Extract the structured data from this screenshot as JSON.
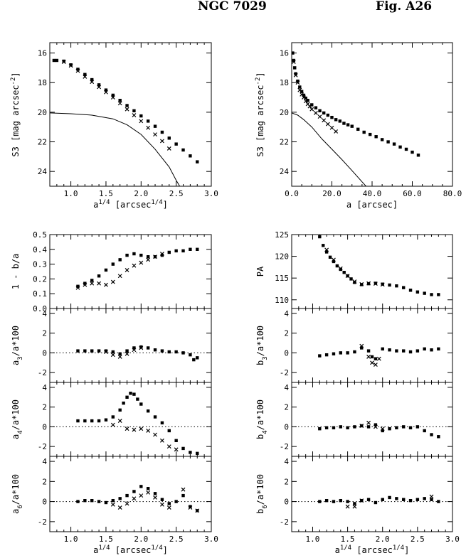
{
  "header": {
    "galaxy": "NGC 7029",
    "figure": "Fig. A26"
  },
  "chart_data": [
    {
      "id": "sb_vs_a14",
      "type": "scatter",
      "xlabel": "a^{1/4} [arcsec^{1/4}]",
      "ylabel": "S3 [mag arcsec^{-2}]",
      "xlim": [
        0.7,
        3.0
      ],
      "ylim": [
        25.0,
        15.3
      ],
      "y_inverted": true,
      "xticks": [
        "1.0",
        "1.5",
        "2.0",
        "2.5",
        "3.0"
      ],
      "yticks": [
        "16",
        "18",
        "20",
        "22",
        "24"
      ],
      "series": [
        {
          "marker": "square",
          "x": [
            0.76,
            0.8,
            0.9,
            1.0,
            1.1,
            1.2,
            1.3,
            1.4,
            1.5,
            1.6,
            1.7,
            1.8,
            1.9,
            2.0,
            2.1,
            2.2,
            2.3,
            2.4,
            2.5,
            2.6,
            2.7,
            2.8
          ],
          "y": [
            16.5,
            16.5,
            16.55,
            16.8,
            17.1,
            17.45,
            17.8,
            18.15,
            18.5,
            18.85,
            19.2,
            19.55,
            19.9,
            20.25,
            20.6,
            20.95,
            21.35,
            21.75,
            22.15,
            22.55,
            22.95,
            23.35
          ]
        },
        {
          "marker": "cross",
          "x": [
            0.9,
            1.0,
            1.1,
            1.2,
            1.3,
            1.4,
            1.5,
            1.6,
            1.7,
            1.8,
            1.9,
            2.0,
            2.1,
            2.2,
            2.3,
            2.4
          ],
          "y": [
            16.6,
            16.85,
            17.2,
            17.6,
            17.95,
            18.3,
            18.65,
            19.0,
            19.4,
            19.8,
            20.2,
            20.6,
            21.05,
            21.5,
            21.95,
            22.45
          ]
        },
        {
          "marker": "line",
          "x": [
            0.7,
            1.0,
            1.3,
            1.6,
            1.8,
            2.0,
            2.2,
            2.4,
            2.5,
            2.55
          ],
          "y": [
            20.05,
            20.1,
            20.2,
            20.45,
            20.85,
            21.5,
            22.5,
            23.7,
            24.6,
            25.0
          ]
        }
      ]
    },
    {
      "id": "sb_vs_a",
      "type": "scatter",
      "xlabel": "a [arcsec]",
      "ylabel": "S3 [mag arcsec^{-2}]",
      "xlim": [
        0,
        80
      ],
      "ylim": [
        25.0,
        15.3
      ],
      "y_inverted": true,
      "xticks": [
        "0.0",
        "20.0",
        "40.0",
        "60.0",
        "80.0"
      ],
      "yticks": [
        "16",
        "18",
        "20",
        "22",
        "24"
      ],
      "series": [
        {
          "marker": "square",
          "x": [
            0.5,
            1,
            1.5,
            2,
            3,
            4,
            5,
            6,
            7,
            8,
            10,
            12,
            14,
            16,
            18,
            20,
            22,
            24,
            26,
            28,
            30,
            33,
            36,
            39,
            42,
            45,
            48,
            51,
            54,
            57,
            60,
            63
          ],
          "y": [
            16.0,
            16.5,
            17.0,
            17.4,
            17.9,
            18.3,
            18.6,
            18.85,
            19.05,
            19.2,
            19.5,
            19.7,
            19.9,
            20.05,
            20.2,
            20.35,
            20.5,
            20.6,
            20.75,
            20.85,
            20.95,
            21.15,
            21.35,
            21.5,
            21.65,
            21.85,
            22.0,
            22.15,
            22.35,
            22.5,
            22.7,
            22.9
          ]
        },
        {
          "marker": "cross",
          "x": [
            1,
            2,
            3,
            4,
            5,
            6,
            7,
            8,
            9,
            10,
            12,
            14,
            16,
            18,
            20,
            22
          ],
          "y": [
            16.6,
            17.5,
            18.0,
            18.5,
            18.8,
            19.0,
            19.25,
            19.45,
            19.6,
            19.8,
            20.05,
            20.3,
            20.55,
            20.8,
            21.05,
            21.3
          ]
        },
        {
          "marker": "line",
          "x": [
            0,
            3,
            6,
            10,
            15,
            20,
            25,
            30,
            35,
            37
          ],
          "y": [
            20.05,
            20.2,
            20.5,
            21.0,
            21.8,
            22.5,
            23.2,
            23.95,
            24.7,
            25.0
          ]
        }
      ]
    },
    {
      "id": "ellipticity",
      "type": "scatter",
      "ylabel": "1 - b/a",
      "xlim": [
        0.7,
        3.0
      ],
      "ylim": [
        0.0,
        0.5
      ],
      "yticks": [
        "0.0",
        "0.1",
        "0.2",
        "0.3",
        "0.4",
        "0.5"
      ],
      "series": [
        {
          "marker": "square",
          "x": [
            1.1,
            1.2,
            1.3,
            1.4,
            1.5,
            1.6,
            1.7,
            1.8,
            1.9,
            2.0,
            2.1,
            2.2,
            2.3,
            2.4,
            2.5,
            2.6,
            2.7,
            2.8
          ],
          "y": [
            0.15,
            0.17,
            0.19,
            0.22,
            0.26,
            0.3,
            0.33,
            0.36,
            0.37,
            0.36,
            0.35,
            0.35,
            0.36,
            0.38,
            0.39,
            0.39,
            0.4,
            0.4
          ]
        },
        {
          "marker": "cross",
          "x": [
            1.1,
            1.2,
            1.3,
            1.4,
            1.5,
            1.6,
            1.7,
            1.8,
            1.9,
            2.0,
            2.1,
            2.2,
            2.3
          ],
          "y": [
            0.14,
            0.16,
            0.17,
            0.17,
            0.16,
            0.18,
            0.22,
            0.26,
            0.29,
            0.31,
            0.33,
            0.35,
            0.37
          ]
        }
      ]
    },
    {
      "id": "position_angle",
      "type": "scatter",
      "ylabel": "PA",
      "xlim": [
        0.7,
        3.0
      ],
      "ylim": [
        108,
        125
      ],
      "yticks": [
        "110",
        "115",
        "120",
        "125"
      ],
      "series": [
        {
          "marker": "square",
          "x": [
            1.1,
            1.15,
            1.2,
            1.25,
            1.3,
            1.35,
            1.4,
            1.45,
            1.5,
            1.55,
            1.6,
            1.7,
            1.8,
            1.9,
            2.0,
            2.1,
            2.2,
            2.3,
            2.4,
            2.5,
            2.6,
            2.7,
            2.8
          ],
          "y": [
            124.5,
            122.5,
            121.0,
            119.8,
            118.8,
            117.8,
            117.0,
            116.3,
            115.5,
            114.8,
            114.0,
            113.5,
            113.7,
            113.8,
            113.6,
            113.4,
            113.2,
            112.8,
            112.2,
            111.8,
            111.5,
            111.2,
            111.2
          ]
        },
        {
          "marker": "cross",
          "x": [
            1.2,
            1.3,
            1.4,
            1.5,
            1.6,
            1.7,
            1.8,
            1.9,
            2.0
          ],
          "y": [
            121.5,
            119.2,
            117.2,
            115.5,
            114.2,
            113.6,
            113.8,
            113.7,
            113.5
          ]
        }
      ]
    },
    {
      "id": "a3",
      "type": "scatter",
      "ylabel": "a_3/a*100",
      "xlim": [
        0.7,
        3.0
      ],
      "ylim": [
        -3.0,
        4.5
      ],
      "yticks": [
        "-2",
        "0",
        "2",
        "4"
      ],
      "dotted_zero": true,
      "series": [
        {
          "marker": "square",
          "x": [
            1.1,
            1.2,
            1.3,
            1.4,
            1.5,
            1.6,
            1.7,
            1.8,
            1.9,
            2.0,
            2.1,
            2.2,
            2.3,
            2.4,
            2.5,
            2.6,
            2.7,
            2.75,
            2.8
          ],
          "y": [
            0.2,
            0.2,
            0.2,
            0.2,
            0.2,
            0.1,
            -0.1,
            0.2,
            0.5,
            0.6,
            0.5,
            0.3,
            0.2,
            0.1,
            0.1,
            0.0,
            -0.2,
            -0.7,
            -0.5
          ]
        },
        {
          "marker": "cross",
          "x": [
            1.5,
            1.6,
            1.7,
            1.8,
            1.9,
            2.0
          ],
          "y": [
            0.1,
            -0.2,
            -0.4,
            -0.1,
            0.3,
            0.5
          ]
        }
      ]
    },
    {
      "id": "b3",
      "type": "scatter",
      "ylabel": "b_3/a*100",
      "xlim": [
        0.7,
        3.0
      ],
      "ylim": [
        -3.0,
        4.5
      ],
      "yticks": [
        "-2",
        "0",
        "2",
        "4"
      ],
      "series": [
        {
          "marker": "square",
          "x": [
            1.1,
            1.2,
            1.3,
            1.4,
            1.5,
            1.6,
            1.7,
            1.8,
            1.85,
            1.9,
            2.0,
            2.1,
            2.2,
            2.3,
            2.4,
            2.5,
            2.6,
            2.7,
            2.8
          ],
          "y": [
            -0.3,
            -0.2,
            -0.1,
            0.0,
            0.0,
            0.1,
            0.5,
            0.2,
            -0.4,
            -0.6,
            0.4,
            0.3,
            0.2,
            0.2,
            0.1,
            0.2,
            0.4,
            0.3,
            0.4
          ]
        },
        {
          "marker": "cross",
          "x": [
            1.7,
            1.8,
            1.85,
            1.9,
            1.95
          ],
          "y": [
            0.7,
            -0.4,
            -1.0,
            -1.2,
            -0.6
          ]
        }
      ]
    },
    {
      "id": "a4",
      "type": "scatter",
      "ylabel": "a_4/a*100",
      "xlim": [
        0.7,
        3.0
      ],
      "ylim": [
        -3.0,
        4.5
      ],
      "yticks": [
        "-2",
        "0",
        "2",
        "4"
      ],
      "dotted_zero": true,
      "series": [
        {
          "marker": "square",
          "x": [
            1.1,
            1.2,
            1.3,
            1.4,
            1.5,
            1.6,
            1.7,
            1.75,
            1.8,
            1.85,
            1.9,
            1.95,
            2.0,
            2.1,
            2.2,
            2.3,
            2.4,
            2.5,
            2.6,
            2.7,
            2.8
          ],
          "y": [
            0.6,
            0.6,
            0.6,
            0.6,
            0.7,
            1.0,
            1.7,
            2.4,
            3.0,
            3.4,
            3.3,
            2.8,
            2.3,
            1.6,
            1.0,
            0.4,
            -0.4,
            -1.4,
            -2.2,
            -2.6,
            -2.7
          ]
        },
        {
          "marker": "cross",
          "x": [
            1.6,
            1.7,
            1.8,
            1.9,
            2.0,
            2.1,
            2.2,
            2.3,
            2.4,
            2.5
          ],
          "y": [
            0.2,
            0.6,
            -0.2,
            -0.3,
            -0.2,
            -0.4,
            -0.8,
            -1.4,
            -2.0,
            -2.3
          ]
        }
      ]
    },
    {
      "id": "b4",
      "type": "scatter",
      "ylabel": "b_4/a*100",
      "xlim": [
        0.7,
        3.0
      ],
      "ylim": [
        -3.0,
        4.5
      ],
      "yticks": [
        "-2",
        "0",
        "2",
        "4"
      ],
      "dotted_zero": true,
      "series": [
        {
          "marker": "square",
          "x": [
            1.1,
            1.2,
            1.3,
            1.4,
            1.5,
            1.6,
            1.7,
            1.8,
            1.9,
            2.0,
            2.1,
            2.2,
            2.3,
            2.4,
            2.5,
            2.6,
            2.7,
            2.8
          ],
          "y": [
            -0.2,
            -0.1,
            -0.1,
            0.0,
            -0.1,
            0.0,
            0.1,
            0.0,
            0.2,
            -0.4,
            -0.2,
            -0.1,
            0.0,
            -0.1,
            0.0,
            -0.4,
            -0.8,
            -1.0
          ]
        },
        {
          "marker": "cross",
          "x": [
            1.7,
            1.8,
            1.9,
            2.0
          ],
          "y": [
            0.1,
            0.4,
            0.0,
            -0.2
          ]
        }
      ]
    },
    {
      "id": "a6",
      "type": "scatter",
      "ylabel": "a_6/a*100",
      "xlim": [
        0.7,
        3.0
      ],
      "ylim": [
        -3.0,
        4.5
      ],
      "yticks": [
        "-2",
        "0",
        "2",
        "4"
      ],
      "dotted_zero": true,
      "xlabel": "a^{1/4} [arcsec^{1/4}]",
      "xticks": [
        "1.0",
        "1.5",
        "2.0",
        "2.5",
        "3.0"
      ],
      "series": [
        {
          "marker": "square",
          "x": [
            1.1,
            1.2,
            1.3,
            1.4,
            1.5,
            1.6,
            1.7,
            1.8,
            1.9,
            2.0,
            2.1,
            2.2,
            2.3,
            2.4,
            2.5,
            2.6,
            2.7,
            2.8
          ],
          "y": [
            0.0,
            0.1,
            0.1,
            0.0,
            -0.1,
            0.1,
            0.3,
            0.6,
            1.0,
            1.5,
            1.3,
            0.8,
            0.2,
            -0.2,
            0.0,
            0.6,
            -0.5,
            -0.9
          ]
        },
        {
          "marker": "cross",
          "x": [
            1.6,
            1.7,
            1.8,
            1.9,
            2.0,
            2.1,
            2.2,
            2.3,
            2.4,
            2.6,
            2.7,
            2.8
          ],
          "y": [
            -0.3,
            -0.6,
            -0.2,
            0.3,
            0.6,
            0.9,
            0.4,
            -0.3,
            -0.6,
            1.2,
            -0.6,
            -0.9
          ]
        }
      ]
    },
    {
      "id": "b6",
      "type": "scatter",
      "ylabel": "b_6/a*100",
      "xlim": [
        0.7,
        3.0
      ],
      "ylim": [
        -3.0,
        4.5
      ],
      "yticks": [
        "-2",
        "0",
        "2",
        "4"
      ],
      "dotted_zero": true,
      "xlabel": "a^{1/4} [arcsec^{1/4}]",
      "xticks": [
        "1.0",
        "1.5",
        "2.0",
        "2.5",
        "3.0"
      ],
      "series": [
        {
          "marker": "square",
          "x": [
            1.1,
            1.2,
            1.3,
            1.4,
            1.5,
            1.6,
            1.7,
            1.8,
            1.9,
            2.0,
            2.1,
            2.2,
            2.3,
            2.4,
            2.5,
            2.6,
            2.7,
            2.8
          ],
          "y": [
            0.0,
            0.1,
            0.0,
            0.1,
            0.0,
            -0.2,
            0.1,
            0.2,
            -0.1,
            0.2,
            0.4,
            0.3,
            0.2,
            0.1,
            0.2,
            0.3,
            0.2,
            0.0
          ]
        },
        {
          "marker": "cross",
          "x": [
            1.5,
            1.6,
            1.7,
            2.7
          ],
          "y": [
            -0.5,
            -0.5,
            0.1,
            0.5
          ]
        }
      ]
    }
  ]
}
